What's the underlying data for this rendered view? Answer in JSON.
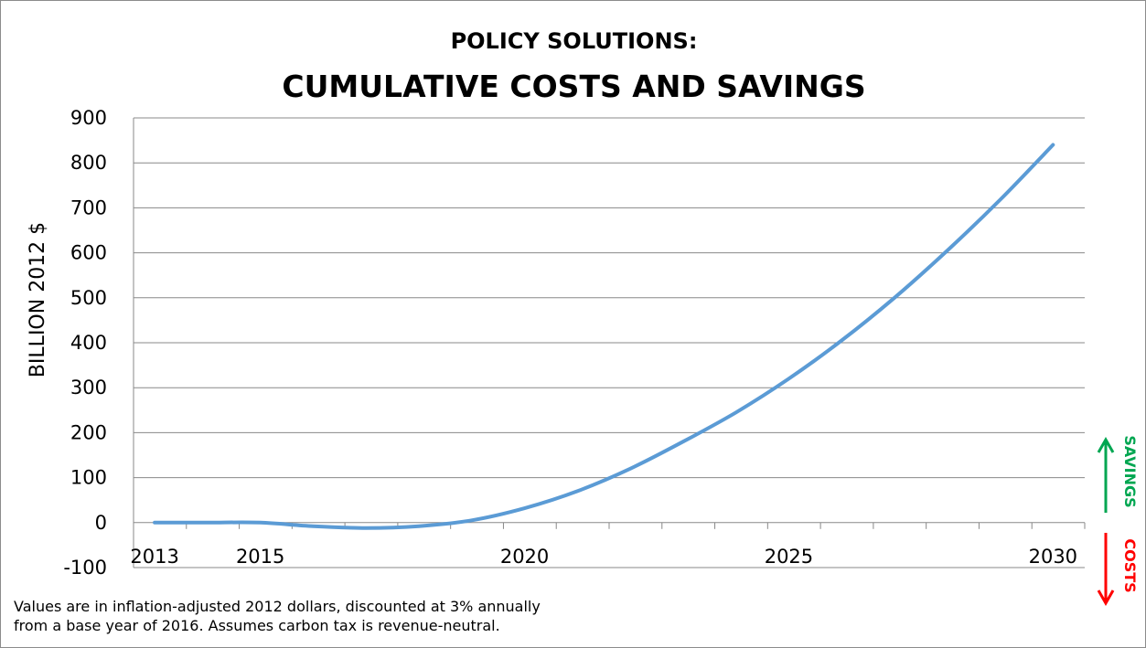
{
  "chart_data": {
    "type": "line",
    "title_line1": "POLICY SOLUTIONS:",
    "title_line2": "CUMULATIVE COSTS AND SAVINGS",
    "ylabel": "BILLION 2012 $",
    "xlabel": "",
    "ylim": [
      -100,
      900
    ],
    "yticks": [
      900,
      800,
      700,
      600,
      500,
      400,
      300,
      200,
      100,
      0,
      -100
    ],
    "xlim": [
      2012.6,
      2030.6
    ],
    "xtick_labels": [
      "2013",
      "2015",
      "2020",
      "2025",
      "2030"
    ],
    "xtick_label_positions": [
      2013,
      2015,
      2020,
      2025,
      2030
    ],
    "grid": true,
    "legend": "none",
    "series": [
      {
        "color": "#5b9bd5",
        "x": [
          2013,
          2014,
          2015,
          2016,
          2017,
          2018,
          2019,
          2020,
          2021,
          2022,
          2023,
          2024,
          2025,
          2026,
          2027,
          2028,
          2029,
          2030
        ],
        "y": [
          0,
          0,
          0,
          -8,
          -12,
          -8,
          5,
          32,
          70,
          120,
          180,
          245,
          320,
          405,
          500,
          605,
          718,
          840
        ]
      }
    ],
    "savings_label": "SAVINGS",
    "costs_label": "COSTS",
    "savings_color": "#00a651",
    "costs_color": "#ff0000"
  },
  "footnote": {
    "line1": "Values are in inflation-adjusted 2012 dollars, discounted at 3% annually",
    "line2": "from a base year of 2016.  Assumes carbon tax is revenue-neutral."
  }
}
